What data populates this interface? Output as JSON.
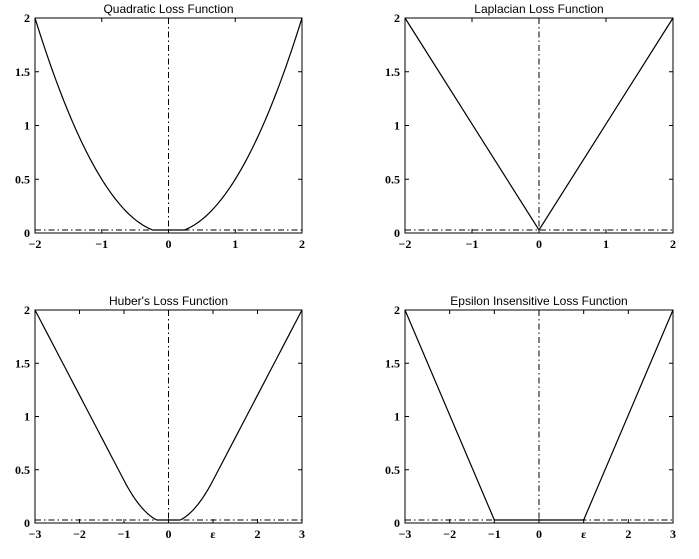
{
  "chart_data": [
    {
      "type": "line",
      "title": "Quadratic Loss Function",
      "function": "quadratic",
      "xlim": [
        -2,
        2
      ],
      "ylim": [
        0,
        2
      ],
      "xticks": [
        {
          "value": -2,
          "label": "−2"
        },
        {
          "value": -1,
          "label": "−1"
        },
        {
          "value": 0,
          "label": "0"
        },
        {
          "value": 1,
          "label": "1"
        },
        {
          "value": 2,
          "label": "2"
        }
      ],
      "yticks": [
        {
          "value": 0,
          "label": "0"
        },
        {
          "value": 0.5,
          "label": "0.5"
        },
        {
          "value": 1,
          "label": "1"
        },
        {
          "value": 1.5,
          "label": "1.5"
        },
        {
          "value": 2,
          "label": "2"
        }
      ],
      "series": [
        {
          "x": [
            -2,
            -1.5,
            -1,
            -0.5,
            0,
            0.5,
            1,
            1.5,
            2
          ],
          "y": [
            2,
            1.125,
            0.5,
            0.125,
            0,
            0.125,
            0.5,
            1.125,
            2
          ]
        }
      ],
      "reference_lines": {
        "vertical_x": 0,
        "horizontal_y": 0
      },
      "grid": false
    },
    {
      "type": "line",
      "title": "Laplacian Loss Function",
      "function": "laplacian",
      "xlim": [
        -2,
        2
      ],
      "ylim": [
        0,
        2
      ],
      "xticks": [
        {
          "value": -2,
          "label": "−2"
        },
        {
          "value": -1,
          "label": "−1"
        },
        {
          "value": 0,
          "label": "0"
        },
        {
          "value": 1,
          "label": "1"
        },
        {
          "value": 2,
          "label": "2"
        }
      ],
      "yticks": [
        {
          "value": 0,
          "label": "0"
        },
        {
          "value": 0.5,
          "label": "0.5"
        },
        {
          "value": 1,
          "label": "1"
        },
        {
          "value": 1.5,
          "label": "1.5"
        },
        {
          "value": 2,
          "label": "2"
        }
      ],
      "series": [
        {
          "x": [
            -2,
            0,
            2
          ],
          "y": [
            2,
            0,
            2
          ]
        }
      ],
      "reference_lines": {
        "vertical_x": 0,
        "horizontal_y": 0
      },
      "grid": false
    },
    {
      "type": "line",
      "title": "Huber's Loss Function",
      "function": "huber",
      "xlim": [
        -3,
        3
      ],
      "ylim": [
        0,
        2
      ],
      "xticks": [
        {
          "value": -3,
          "label": "−3"
        },
        {
          "value": -2,
          "label": "−2"
        },
        {
          "value": -1,
          "label": "−1"
        },
        {
          "value": 0,
          "label": "0"
        },
        {
          "value": 1,
          "label": "ε"
        },
        {
          "value": 2,
          "label": "2"
        },
        {
          "value": 3,
          "label": "3"
        }
      ],
      "yticks": [
        {
          "value": 0,
          "label": "0"
        },
        {
          "value": 0.5,
          "label": "0.5"
        },
        {
          "value": 1,
          "label": "1"
        },
        {
          "value": 1.5,
          "label": "1.5"
        },
        {
          "value": 2,
          "label": "2"
        }
      ],
      "series": [
        {
          "x": [
            -3,
            -2,
            -1,
            -0.5,
            0,
            0.5,
            1,
            2,
            3
          ],
          "y": [
            2,
            1.2,
            0.4,
            0.1,
            0,
            0.1,
            0.4,
            1.2,
            2
          ]
        }
      ],
      "reference_lines": {
        "vertical_x": 0,
        "horizontal_y": 0
      },
      "grid": false
    },
    {
      "type": "line",
      "title": "Epsilon Insensitive Loss Function",
      "function": "epsilon_insensitive",
      "xlim": [
        -3,
        3
      ],
      "ylim": [
        0,
        2
      ],
      "xticks": [
        {
          "value": -3,
          "label": "−3"
        },
        {
          "value": -2,
          "label": "−2"
        },
        {
          "value": -1,
          "label": "−1"
        },
        {
          "value": 0,
          "label": "0"
        },
        {
          "value": 1,
          "label": "ε"
        },
        {
          "value": 2,
          "label": "2"
        },
        {
          "value": 3,
          "label": "3"
        }
      ],
      "yticks": [
        {
          "value": 0,
          "label": "0"
        },
        {
          "value": 0.5,
          "label": "0.5"
        },
        {
          "value": 1,
          "label": "1"
        },
        {
          "value": 1.5,
          "label": "1.5"
        },
        {
          "value": 2,
          "label": "2"
        }
      ],
      "series": [
        {
          "x": [
            -3,
            -1,
            1,
            3
          ],
          "y": [
            2,
            0,
            0,
            2
          ]
        }
      ],
      "reference_lines": {
        "vertical_x": 0,
        "horizontal_y": 0
      },
      "grid": false
    }
  ]
}
